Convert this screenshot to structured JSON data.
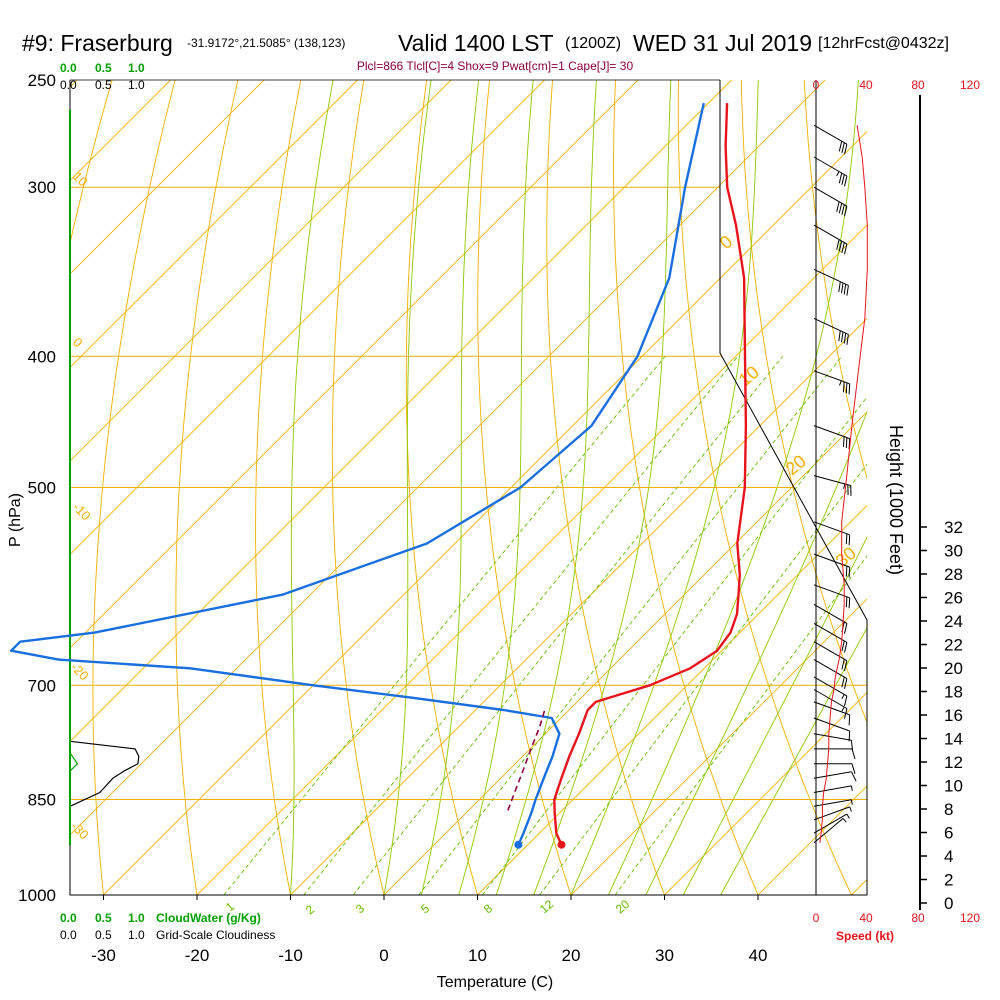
{
  "header": {
    "station": "#9: Fraserburg",
    "location": "-31.9172°,21.5085° (138,123)",
    "valid": "Valid 1400 LST",
    "zulu": "(1200Z)",
    "date": "WED 31 Jul 2019",
    "forecast": "[12hrFcst@0432z]",
    "parcel_info": "Plcl=866 Tlcl[C]=4 Shox=9 Pwat[cm]=1 Cape[J]= 30"
  },
  "colors": {
    "temperature": "#e8141c",
    "dewpoint": "#1a6fe0",
    "isotherm": "#f0b000",
    "dry_adiabat": "#f0b000",
    "moist_adiabat": "#90c800",
    "mixing_ratio": "#66bb00",
    "parcel": "#8b0040",
    "cloud_water": "#00a000",
    "wind_speed": "#e8141c"
  },
  "chart_data": {
    "type": "line",
    "title": "#9: Fraserburg",
    "xlabel": "Temperature (C)",
    "ylabel": "P (hPa)",
    "right_axis_label": "Height (1000 Feet)",
    "pressure_ticks": [
      "250",
      "300",
      "400",
      "500",
      "700",
      "850",
      "1000"
    ],
    "temperature_ticks": [
      "-30",
      "-20",
      "-10",
      "0",
      "10",
      "20",
      "30",
      "40"
    ],
    "height_ticks": [
      "0",
      "2",
      "4",
      "6",
      "8",
      "10",
      "12",
      "14",
      "16",
      "18",
      "20",
      "22",
      "24",
      "26",
      "28",
      "30",
      "32"
    ],
    "cloud_top_scale": [
      "0.0",
      "0.5",
      "1.0"
    ],
    "cloud_top_scale_green": [
      "0.0",
      "0.5",
      "1.0"
    ],
    "cloud_bottom_scale_green": [
      "0.0",
      "0.5",
      "1.0"
    ],
    "cloud_water_label": "CloudWater (g/Kg)",
    "cloud_bottom_scale": [
      "0.0",
      "0.5",
      "1.0"
    ],
    "cloudiness_label": "Grid-Scale Cloudiness",
    "speed_top_ticks": [
      "0",
      "40",
      "80",
      "120"
    ],
    "speed_bottom_ticks": [
      "0",
      "40",
      "80",
      "120"
    ],
    "speed_label": "Speed (kt)",
    "isotherm_labels": [
      "10",
      "0",
      "-10",
      "-20",
      "-30"
    ],
    "adiabat_labels": [
      "0",
      "10",
      "20",
      "30"
    ],
    "mixing_ratio_labels": [
      "1",
      "2",
      "3",
      "5",
      "8",
      "12",
      "20"
    ],
    "series": [
      {
        "name": "Temperature",
        "pressure": [
          918,
          900,
          870,
          850,
          820,
          790,
          760,
          730,
          720,
          700,
          680,
          660,
          640,
          620,
          600,
          580,
          550,
          500,
          450,
          400,
          350,
          320,
          300,
          280,
          260
        ],
        "temp": [
          13.6,
          11.8,
          9.5,
          8.0,
          6.5,
          5.0,
          3.6,
          2.0,
          2.0,
          6.0,
          8.5,
          9.5,
          9.0,
          7.7,
          5.8,
          3.8,
          0.2,
          -5.0,
          -11.5,
          -19.0,
          -27.5,
          -34.0,
          -39.0,
          -43.5,
          -48.0
        ]
      },
      {
        "name": "Dewpoint",
        "pressure": [
          918,
          900,
          870,
          850,
          820,
          790,
          760,
          740,
          730,
          715,
          700,
          680,
          670,
          660,
          650,
          640,
          600,
          550,
          500,
          450,
          400,
          350,
          300,
          260
        ],
        "temp": [
          9.0,
          8.3,
          7.0,
          6.0,
          4.6,
          3.2,
          1.5,
          -1.0,
          -7.0,
          -18.0,
          -30.0,
          -45.0,
          -60.0,
          -66.0,
          -66.0,
          -59.0,
          -43.0,
          -33.0,
          -29.0,
          -28.0,
          -30.5,
          -35.5,
          -43.5,
          -50.5
        ]
      }
    ],
    "parcel_trace": {
      "pressure": [
        866,
        840,
        810,
        780,
        750,
        730
      ],
      "temp": [
        4.2,
        3.0,
        1.6,
        0.1,
        -1.4,
        -2.6
      ]
    },
    "surface": {
      "pressure": 918,
      "temperature": 13.6,
      "dewpoint": 9.0
    },
    "cloudiness_profile": {
      "pressure": [
        770,
        780,
        790,
        800,
        810,
        820,
        840,
        860
      ],
      "fraction": [
        0.0,
        0.7,
        0.74,
        0.73,
        0.58,
        0.46,
        0.32,
        0.0
      ]
    },
    "cloud_water_profile": {
      "pressure": [
        785,
        800,
        810
      ],
      "value": [
        0.0,
        0.08,
        0.0
      ]
    },
    "wind_profile": {
      "pressure": [
        270,
        285,
        300,
        320,
        345,
        375,
        410,
        450,
        490,
        530,
        560,
        590,
        610,
        630,
        650,
        670,
        690,
        705,
        720,
        740,
        760,
        780,
        800,
        820,
        840,
        860,
        880,
        900,
        915
      ],
      "speed_kt": [
        32,
        36,
        38,
        40,
        40,
        38,
        33,
        28,
        24,
        20,
        20,
        22,
        22,
        21,
        20,
        18,
        15,
        14,
        12,
        11,
        10,
        10,
        9,
        8,
        6,
        5,
        5,
        4,
        3
      ],
      "direction_deg": [
        300,
        300,
        300,
        300,
        295,
        295,
        290,
        290,
        285,
        290,
        290,
        290,
        300,
        300,
        300,
        300,
        300,
        300,
        290,
        290,
        280,
        270,
        270,
        260,
        260,
        260,
        250,
        240,
        230
      ]
    },
    "xlim": [
      -35,
      45
    ],
    "ylim": [
      1000,
      250
    ]
  }
}
